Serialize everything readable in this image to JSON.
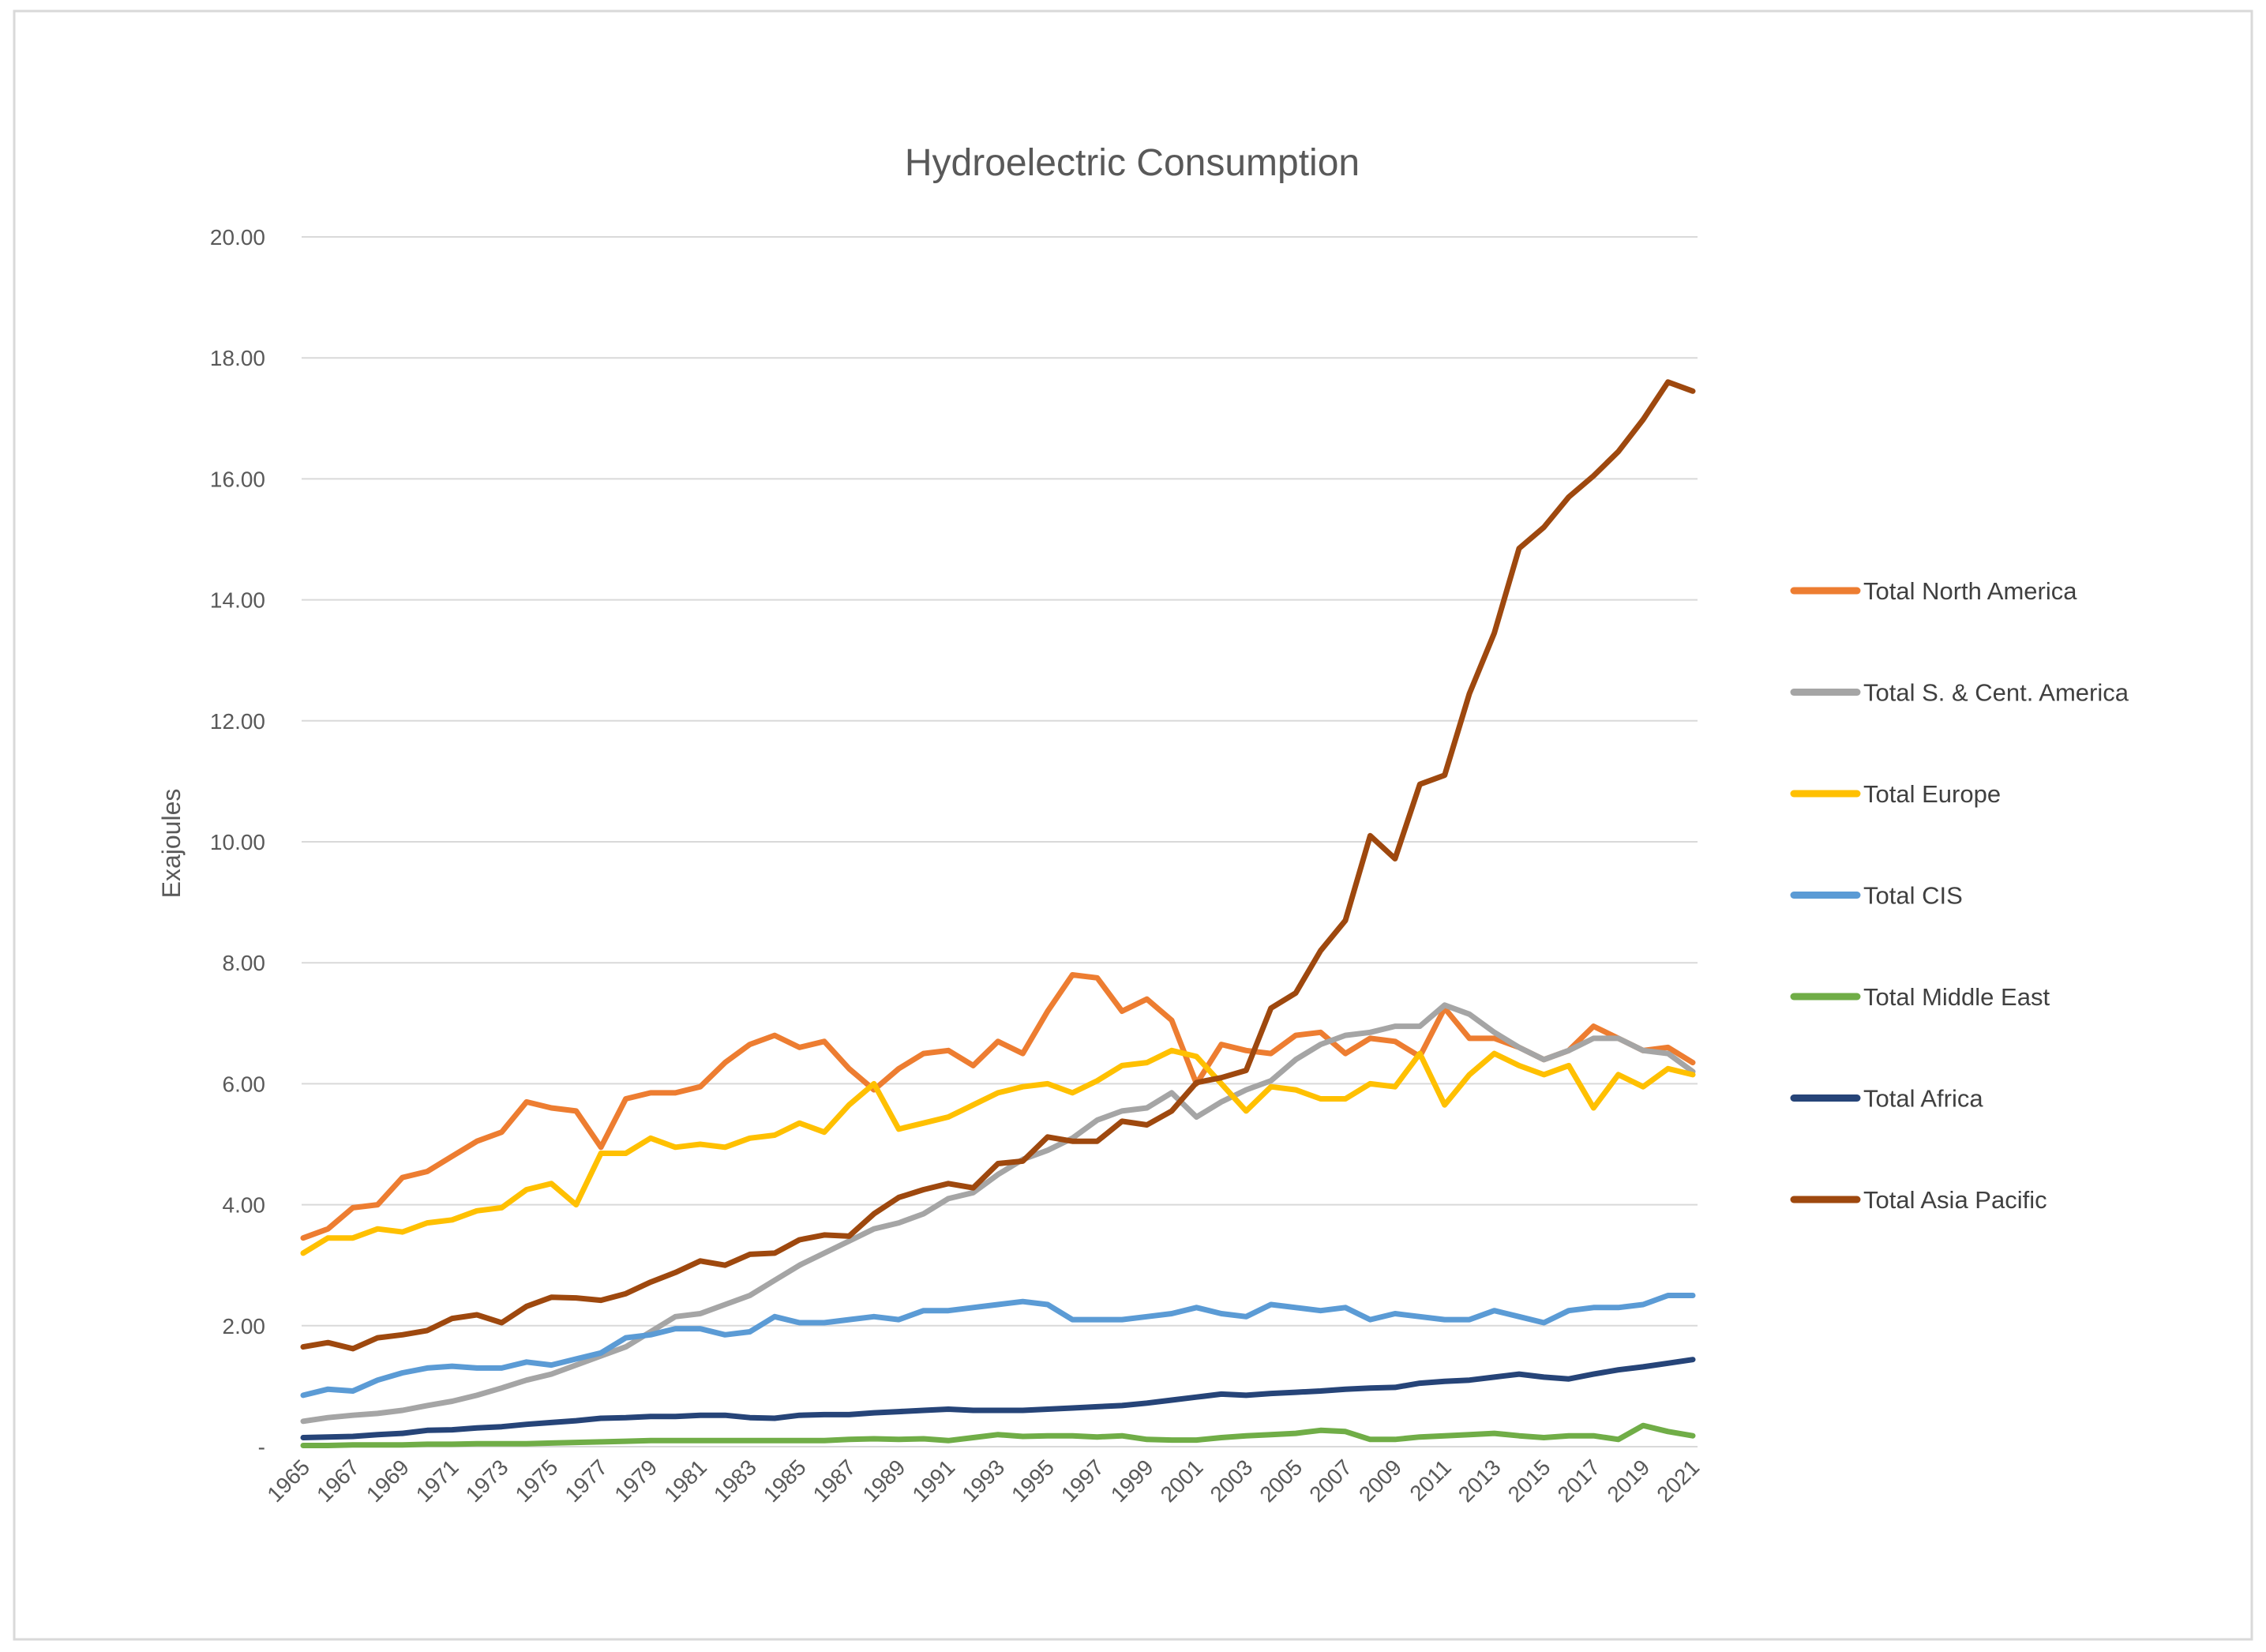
{
  "chart_data": {
    "type": "line",
    "title": "Hydroelectric Consumption",
    "xlabel": "",
    "ylabel": "Exajoules",
    "ylim": [
      0,
      20
    ],
    "yticks": [
      "-",
      "2.00",
      "4.00",
      "6.00",
      "8.00",
      "10.00",
      "12.00",
      "14.00",
      "16.00",
      "18.00",
      "20.00"
    ],
    "grid": true,
    "legend_position": "right",
    "x": [
      1965,
      1966,
      1967,
      1968,
      1969,
      1970,
      1971,
      1972,
      1973,
      1974,
      1975,
      1976,
      1977,
      1978,
      1979,
      1980,
      1981,
      1982,
      1983,
      1984,
      1985,
      1986,
      1987,
      1988,
      1989,
      1990,
      1991,
      1992,
      1993,
      1994,
      1995,
      1996,
      1997,
      1998,
      1999,
      2000,
      2001,
      2002,
      2003,
      2004,
      2005,
      2006,
      2007,
      2008,
      2009,
      2010,
      2011,
      2012,
      2013,
      2014,
      2015,
      2016,
      2017,
      2018,
      2019,
      2020,
      2021
    ],
    "xtick_labels": [
      "1965",
      "1967",
      "1969",
      "1971",
      "1973",
      "1975",
      "1977",
      "1979",
      "1981",
      "1983",
      "1985",
      "1987",
      "1989",
      "1991",
      "1993",
      "1995",
      "1997",
      "1999",
      "2001",
      "2003",
      "2005",
      "2007",
      "2009",
      "2011",
      "2013",
      "2015",
      "2017",
      "2019",
      "2021"
    ],
    "series": [
      {
        "name": "Total North America",
        "color": "#ED7D31",
        "values": [
          3.45,
          3.6,
          3.95,
          4.0,
          4.45,
          4.55,
          4.8,
          5.05,
          5.2,
          5.7,
          5.6,
          5.55,
          4.95,
          5.75,
          5.85,
          5.85,
          5.95,
          6.35,
          6.65,
          6.8,
          6.6,
          6.7,
          6.25,
          5.9,
          6.25,
          6.5,
          6.55,
          6.3,
          6.7,
          6.5,
          7.2,
          7.8,
          7.75,
          7.2,
          7.4,
          7.05,
          6.0,
          6.65,
          6.55,
          6.5,
          6.8,
          6.85,
          6.5,
          6.75,
          6.7,
          6.45,
          7.25,
          6.75,
          6.75,
          6.6,
          6.4,
          6.55,
          6.95,
          6.75,
          6.55,
          6.6,
          6.35
        ]
      },
      {
        "name": "Total S. & Cent. America",
        "color": "#A5A5A5",
        "values": [
          0.42,
          0.48,
          0.52,
          0.55,
          0.6,
          0.68,
          0.75,
          0.85,
          0.97,
          1.1,
          1.2,
          1.35,
          1.5,
          1.65,
          1.9,
          2.15,
          2.2,
          2.35,
          2.5,
          2.75,
          3.0,
          3.2,
          3.4,
          3.6,
          3.7,
          3.85,
          4.1,
          4.2,
          4.5,
          4.75,
          4.9,
          5.1,
          5.4,
          5.55,
          5.6,
          5.85,
          5.45,
          5.7,
          5.9,
          6.05,
          6.4,
          6.65,
          6.8,
          6.85,
          6.95,
          6.95,
          7.3,
          7.15,
          6.85,
          6.6,
          6.4,
          6.55,
          6.75,
          6.75,
          6.55,
          6.5,
          6.2
        ]
      },
      {
        "name": "Total Europe",
        "color": "#FFC000",
        "values": [
          3.2,
          3.45,
          3.45,
          3.6,
          3.55,
          3.7,
          3.75,
          3.9,
          3.95,
          4.25,
          4.35,
          4.0,
          4.85,
          4.85,
          5.1,
          4.95,
          5.0,
          4.95,
          5.1,
          5.15,
          5.35,
          5.2,
          5.65,
          6.0,
          5.25,
          5.35,
          5.45,
          5.65,
          5.85,
          5.95,
          6.0,
          5.85,
          6.05,
          6.3,
          6.35,
          6.55,
          6.45,
          6.0,
          5.55,
          5.95,
          5.9,
          5.75,
          5.75,
          6.0,
          5.95,
          6.5,
          5.65,
          6.15,
          6.5,
          6.3,
          6.15,
          6.3,
          5.6,
          6.15,
          5.95,
          6.25,
          6.15
        ]
      },
      {
        "name": "Total CIS",
        "color": "#5B9BD5",
        "values": [
          0.85,
          0.95,
          0.92,
          1.1,
          1.22,
          1.3,
          1.33,
          1.3,
          1.3,
          1.4,
          1.35,
          1.45,
          1.55,
          1.8,
          1.85,
          1.95,
          1.95,
          1.85,
          1.9,
          2.15,
          2.05,
          2.05,
          2.1,
          2.15,
          2.1,
          2.25,
          2.25,
          2.3,
          2.35,
          2.4,
          2.35,
          2.1,
          2.1,
          2.1,
          2.15,
          2.2,
          2.3,
          2.2,
          2.15,
          2.35,
          2.3,
          2.25,
          2.3,
          2.1,
          2.2,
          2.15,
          2.1,
          2.1,
          2.25,
          2.15,
          2.05,
          2.25,
          2.3,
          2.3,
          2.35,
          2.5,
          2.5
        ]
      },
      {
        "name": "Total Middle East",
        "color": "#70AD47",
        "values": [
          0.02,
          0.02,
          0.03,
          0.03,
          0.03,
          0.04,
          0.04,
          0.05,
          0.05,
          0.05,
          0.06,
          0.07,
          0.08,
          0.09,
          0.1,
          0.1,
          0.1,
          0.1,
          0.1,
          0.1,
          0.1,
          0.1,
          0.12,
          0.13,
          0.12,
          0.13,
          0.1,
          0.15,
          0.2,
          0.17,
          0.18,
          0.18,
          0.16,
          0.18,
          0.12,
          0.11,
          0.11,
          0.15,
          0.18,
          0.2,
          0.22,
          0.27,
          0.25,
          0.12,
          0.12,
          0.16,
          0.18,
          0.2,
          0.22,
          0.18,
          0.15,
          0.18,
          0.18,
          0.12,
          0.35,
          0.25,
          0.18
        ]
      },
      {
        "name": "Total Africa",
        "color": "#264478",
        "values": [
          0.15,
          0.16,
          0.17,
          0.2,
          0.22,
          0.27,
          0.28,
          0.31,
          0.33,
          0.37,
          0.4,
          0.43,
          0.47,
          0.48,
          0.5,
          0.5,
          0.52,
          0.52,
          0.48,
          0.47,
          0.52,
          0.53,
          0.53,
          0.56,
          0.58,
          0.6,
          0.62,
          0.6,
          0.6,
          0.6,
          0.62,
          0.64,
          0.66,
          0.68,
          0.72,
          0.77,
          0.82,
          0.87,
          0.85,
          0.88,
          0.9,
          0.92,
          0.95,
          0.97,
          0.98,
          1.05,
          1.08,
          1.1,
          1.15,
          1.2,
          1.15,
          1.12,
          1.2,
          1.27,
          1.32,
          1.38,
          1.44
        ]
      },
      {
        "name": "Total Asia Pacific",
        "color": "#9E480E",
        "values": [
          1.65,
          1.72,
          1.62,
          1.8,
          1.85,
          1.92,
          2.12,
          2.18,
          2.05,
          2.32,
          2.47,
          2.46,
          2.42,
          2.53,
          2.72,
          2.88,
          3.07,
          3.0,
          3.18,
          3.2,
          3.42,
          3.5,
          3.48,
          3.85,
          4.12,
          4.25,
          4.35,
          4.28,
          4.68,
          4.72,
          5.12,
          5.05,
          5.05,
          5.38,
          5.32,
          5.55,
          6.02,
          6.1,
          6.22,
          7.25,
          7.5,
          8.2,
          8.7,
          10.1,
          9.72,
          10.95,
          11.1,
          12.45,
          13.45,
          14.85,
          15.2,
          15.7,
          16.05,
          16.45,
          16.98,
          17.6,
          17.45
        ]
      }
    ]
  }
}
